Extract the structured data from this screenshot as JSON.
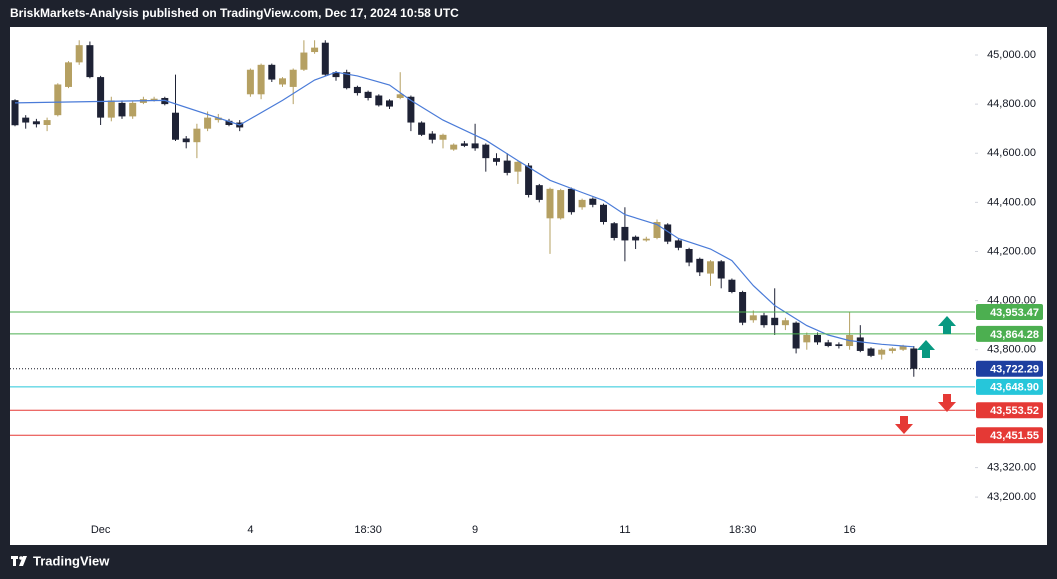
{
  "header": "BriskMarkets-Analysis published on TradingView.com, Dec 17, 2024 10:58 UTC",
  "footer": "TradingView",
  "chart_data": {
    "type": "candlestick",
    "up_color": "#b5a062",
    "down_color": "#1e2235",
    "categories": [
      null,
      null,
      null,
      null,
      null,
      null,
      null,
      null,
      "Dec",
      null,
      null,
      null,
      null,
      null,
      null,
      null,
      null,
      null,
      null,
      null,
      null,
      null,
      "4",
      null,
      null,
      null,
      null,
      null,
      null,
      null,
      null,
      null,
      null,
      "18:30",
      null,
      null,
      null,
      null,
      null,
      null,
      null,
      null,
      null,
      "9",
      null,
      null,
      null,
      null,
      null,
      null,
      null,
      null,
      null,
      null,
      null,
      null,
      null,
      "11",
      null,
      null,
      null,
      null,
      null,
      null,
      null,
      null,
      null,
      null,
      "18:30",
      null,
      null,
      null,
      null,
      null,
      null,
      null,
      null,
      null,
      "16",
      null,
      null,
      null,
      null,
      null,
      null
    ],
    "open": [
      44816,
      44745,
      44730,
      44715,
      44755,
      44870,
      44970,
      45040,
      44910,
      44745,
      44805,
      44750,
      44805,
      44815,
      44825,
      44765,
      44660,
      44645,
      44700,
      44735,
      44732,
      44725,
      44840,
      44840,
      44960,
      44880,
      44870,
      44940,
      45012,
      45050,
      44930,
      44930,
      44870,
      44850,
      44835,
      44815,
      44825,
      44830,
      44725,
      44680,
      44655,
      44615,
      44640,
      44640,
      44635,
      44580,
      44570,
      44525,
      44550,
      44470,
      44335,
      44335,
      44455,
      44380,
      44415,
      44390,
      44315,
      44300,
      44260,
      44245,
      44255,
      44310,
      44245,
      44210,
      44170,
      44110,
      44160,
      44085,
      44035,
      43920,
      43940,
      43930,
      43900,
      43910,
      43830,
      43860,
      43830,
      43822,
      43815,
      43850,
      43805,
      43780,
      43795,
      43800,
      43805
    ],
    "high": [
      44820,
      44755,
      44740,
      44745,
      44885,
      44975,
      45060,
      45055,
      44915,
      44830,
      44815,
      44815,
      44830,
      44830,
      44830,
      44920,
      44670,
      44720,
      44770,
      44760,
      44740,
      44735,
      44945,
      44965,
      44965,
      44910,
      44945,
      45060,
      45060,
      45060,
      44935,
      44940,
      44875,
      44855,
      44840,
      44820,
      44930,
      44835,
      44730,
      44690,
      44680,
      44640,
      44650,
      44720,
      44640,
      44600,
      44600,
      44570,
      44560,
      44475,
      44460,
      44455,
      44460,
      44415,
      44420,
      44395,
      44320,
      44380,
      44265,
      44260,
      44330,
      44315,
      44250,
      44215,
      44175,
      44165,
      44165,
      44090,
      44040,
      43960,
      43950,
      44050,
      43930,
      43915,
      43870,
      43870,
      43840,
      43830,
      43955,
      43900,
      43810,
      43805,
      43810,
      43820,
      43815
    ],
    "low": [
      44710,
      44700,
      44705,
      44690,
      44750,
      44865,
      44960,
      44905,
      44715,
      44730,
      44740,
      44740,
      44800,
      44810,
      44795,
      44650,
      44620,
      44580,
      44690,
      44725,
      44710,
      44690,
      44830,
      44820,
      44890,
      44870,
      44800,
      44935,
      45005,
      44915,
      44895,
      44860,
      44835,
      44815,
      44790,
      44780,
      44820,
      44690,
      44670,
      44640,
      44620,
      44610,
      44625,
      44610,
      44525,
      44550,
      44510,
      44475,
      44420,
      44400,
      44190,
      44330,
      44350,
      44370,
      44380,
      44310,
      44245,
      44160,
      44210,
      44240,
      44250,
      44230,
      44205,
      44140,
      44100,
      44060,
      44050,
      44030,
      43900,
      43910,
      43890,
      43860,
      43880,
      43785,
      43800,
      43820,
      43810,
      43805,
      43800,
      43790,
      43770,
      43760,
      43785,
      43795,
      43690
    ],
    "close": [
      44714,
      44725,
      44718,
      44735,
      44880,
      44970,
      45040,
      44910,
      44745,
      44815,
      44750,
      44805,
      44820,
      44822,
      44800,
      44655,
      44645,
      44700,
      44745,
      44745,
      44715,
      44705,
      44940,
      44960,
      44900,
      44905,
      44940,
      45010,
      45030,
      44920,
      44910,
      44865,
      44845,
      44825,
      44795,
      44790,
      44840,
      44725,
      44675,
      44655,
      44675,
      44635,
      44630,
      44620,
      44580,
      44565,
      44520,
      44565,
      44430,
      44410,
      44455,
      44450,
      44360,
      44410,
      44390,
      44320,
      44255,
      44245,
      44245,
      44252,
      44320,
      44240,
      44215,
      44155,
      44115,
      44160,
      44090,
      44035,
      43910,
      43940,
      43900,
      43900,
      43920,
      43805,
      43860,
      43830,
      43815,
      43815,
      43860,
      43795,
      43775,
      43800,
      43805,
      43815,
      43722.29
    ],
    "ma": {
      "color": "#4a7bd8",
      "x": [
        0,
        14,
        21,
        25,
        28,
        30,
        32,
        35,
        37,
        40,
        44,
        47,
        50,
        53,
        55,
        57,
        60,
        62,
        65,
        67,
        69,
        71,
        74,
        76,
        78,
        81,
        84
      ],
      "values": [
        44805,
        44815,
        44715,
        44815,
        44898,
        44930,
        44915,
        44878,
        44815,
        44735,
        44653,
        44570,
        44490,
        44440,
        44408,
        44350,
        44310,
        44253,
        44210,
        44163,
        44061,
        43980,
        43898,
        43860,
        43837,
        43822,
        43812
      ]
    },
    "ylim": [
      43127,
      45114
    ],
    "yticks": [
      {
        "value": 45000,
        "label": "45,000.00"
      },
      {
        "value": 44800,
        "label": "44,800.00"
      },
      {
        "value": 44600,
        "label": "44,600.00"
      },
      {
        "value": 44400,
        "label": "44,400.00"
      },
      {
        "value": 44200,
        "label": "44,200.00"
      },
      {
        "value": 44000,
        "label": "44,000.00"
      },
      {
        "value": 43800,
        "label": "43,800.00"
      },
      {
        "value": 43320,
        "label": "43,320.00"
      },
      {
        "value": 43200,
        "label": "43,200.00"
      }
    ],
    "levels": [
      {
        "value": 43953.47,
        "label": "43,953.47",
        "color": "#4caf50",
        "line_style": "solid"
      },
      {
        "value": 43864.28,
        "label": "43,864.28",
        "color": "#4caf50",
        "line_style": "solid"
      },
      {
        "value": 43722.29,
        "label": "43,722.29",
        "color": "#1e3fa0",
        "line_style": "dotted"
      },
      {
        "value": 43648.9,
        "label": "43,648.90",
        "color": "#26c6da",
        "line_style": "solid"
      },
      {
        "value": 43553.52,
        "label": "43,553.52",
        "color": "#e53935",
        "line_style": "solid"
      },
      {
        "value": 43451.55,
        "label": "43,451.55",
        "color": "#e53935",
        "line_style": "solid"
      }
    ]
  }
}
